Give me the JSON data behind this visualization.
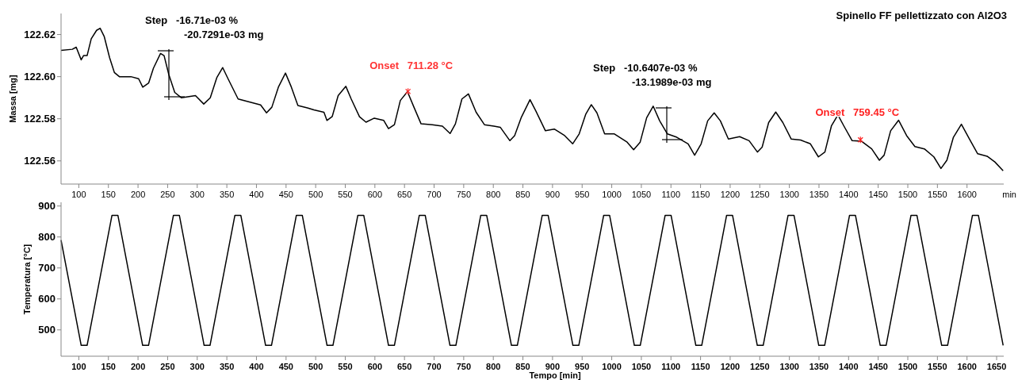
{
  "chart_data": [
    {
      "type": "line",
      "title": "Spinello FF pellettizzato con Al2O3",
      "ylabel": "Massa [mg]",
      "xlabel": "min",
      "xlim": [
        70,
        1662
      ],
      "ylim": [
        122.549,
        122.63
      ],
      "xticks": [
        100,
        150,
        200,
        250,
        300,
        350,
        400,
        450,
        500,
        550,
        600,
        650,
        700,
        750,
        800,
        850,
        900,
        950,
        1000,
        1050,
        1100,
        1150,
        1200,
        1250,
        1300,
        1350,
        1400,
        1450,
        1500,
        1550,
        1600
      ],
      "yticks": [
        122.56,
        122.58,
        {
          "value": 122.6,
          "label": "122.60"
        },
        122.62
      ],
      "annotations": [
        "Step   -16.71e-03 %",
        "-20.7291e-03 mg",
        {
          "text": "Onset   711.28 °C",
          "x": 656,
          "y": 122.593
        },
        "Step   -10.6407e-03 %",
        "-13.1989e-03 mg",
        {
          "text": "Onset   759.45 °C",
          "x": 1420,
          "y": 122.57
        }
      ],
      "series": [
        {
          "color": "#000000",
          "x": [
            70,
            89,
            95.6,
            104,
            108,
            114,
            121,
            130,
            136,
            143,
            152,
            160,
            168.5,
            188,
            201,
            208,
            218,
            226,
            238,
            244,
            252,
            262,
            273,
            297,
            311,
            322,
            333,
            343,
            352,
            369,
            388,
            407,
            417,
            426,
            437,
            449,
            459,
            470,
            486,
            497,
            514,
            519,
            528,
            538,
            551,
            560,
            574,
            585,
            599,
            615,
            623,
            633,
            643,
            655,
            666,
            678,
            697,
            714,
            727,
            736,
            747,
            758,
            771,
            785,
            801,
            812,
            828,
            836,
            847,
            862,
            872,
            888,
            903,
            920.5,
            934,
            945,
            956,
            965.5,
            975,
            988,
            1004.5,
            1026,
            1037,
            1048,
            1059,
            1070,
            1081,
            1094,
            1110,
            1129,
            1140,
            1151,
            1162,
            1173,
            1183.5,
            1197,
            1216,
            1232,
            1246,
            1254,
            1265,
            1277,
            1289,
            1303,
            1319,
            1335.5,
            1349,
            1360,
            1371,
            1382,
            1392,
            1406,
            1422,
            1439,
            1452,
            1460,
            1471,
            1484.5,
            1498,
            1512,
            1528,
            1544,
            1556,
            1566,
            1577,
            1590.5,
            1604,
            1618,
            1634,
            1647,
            1661
          ],
          "values": [
            122.6125,
            122.613,
            122.614,
            122.608,
            122.61,
            122.61,
            122.618,
            122.622,
            122.623,
            122.619,
            122.609,
            122.602,
            122.6,
            122.6,
            122.599,
            122.595,
            122.597,
            122.604,
            122.611,
            122.61,
            122.601,
            122.5925,
            122.59,
            122.591,
            122.587,
            122.59,
            122.5995,
            122.6043,
            122.599,
            122.5894,
            122.588,
            122.5866,
            122.5828,
            122.5855,
            122.595,
            122.6017,
            122.595,
            122.5863,
            122.5852,
            122.5842,
            122.5831,
            122.5792,
            122.5811,
            122.591,
            122.5954,
            122.5894,
            122.581,
            122.5784,
            122.5803,
            122.5792,
            122.5753,
            122.5772,
            122.5887,
            122.5929,
            122.5855,
            122.5776,
            122.5772,
            122.5765,
            122.573,
            122.5776,
            122.5894,
            122.5918,
            122.5831,
            122.5772,
            122.5765,
            122.5759,
            122.5696,
            122.572,
            122.5805,
            122.5891,
            122.5836,
            122.5743,
            122.5751,
            122.572,
            122.5681,
            122.5728,
            122.5821,
            122.5867,
            122.5828,
            122.5728,
            122.5728,
            122.5689,
            122.5653,
            122.5689,
            122.5805,
            122.586,
            122.579,
            122.5728,
            122.5712,
            122.5681,
            122.5627,
            122.5681,
            122.579,
            122.5828,
            122.579,
            122.5704,
            122.5715,
            122.5696,
            122.5642,
            122.5665,
            122.5782,
            122.5832,
            122.5782,
            122.5704,
            122.5699,
            122.5681,
            122.5619,
            122.5642,
            122.5766,
            122.5818,
            122.5766,
            122.5696,
            122.5693,
            122.5657,
            122.5603,
            122.5627,
            122.5743,
            122.5793,
            122.572,
            122.5668,
            122.5657,
            122.5619,
            122.5564,
            122.5603,
            122.5712,
            122.5774,
            122.5704,
            122.5634,
            122.5622,
            122.5595,
            122.5553
          ]
        }
      ]
    },
    {
      "type": "line",
      "ylabel": "Temperatura [°C]",
      "xlabel": "Tempo [min]",
      "xlim": [
        70,
        1662
      ],
      "ylim": [
        415,
        912
      ],
      "xticks": [
        100,
        150,
        200,
        250,
        300,
        350,
        400,
        450,
        500,
        550,
        600,
        650,
        700,
        750,
        800,
        850,
        900,
        950,
        1000,
        1050,
        1100,
        1150,
        1200,
        1250,
        1300,
        1350,
        1400,
        1450,
        1500,
        1550,
        1600,
        1650
      ],
      "yticks": [
        500,
        600,
        700,
        800,
        900
      ],
      "series": [
        {
          "color": "#000000",
          "x": [
            70,
            104,
            114,
            156,
            166,
            207.8,
            217.8,
            259.8,
            269.8,
            311.6,
            321.6,
            363.6,
            373.6,
            415.4,
            425.4,
            467.4,
            477.4,
            519.2,
            529.2,
            571.2,
            581.2,
            623,
            633,
            675,
            685,
            726.8,
            736.8,
            778.8,
            788.8,
            830.6,
            840.6,
            882.6,
            892.6,
            934.4,
            944.4,
            986.4,
            996.4,
            1038.2,
            1048.2,
            1090.2,
            1100.2,
            1142,
            1152,
            1194,
            1204,
            1245.8,
            1255.8,
            1297.8,
            1307.8,
            1349.6,
            1359.6,
            1401.6,
            1411.6,
            1453.4,
            1463.4,
            1505.4,
            1515.4,
            1557.2,
            1567.2,
            1609.2,
            1619.2,
            1661
          ],
          "values": [
            790,
            450,
            450,
            870,
            870,
            450,
            450,
            870,
            870,
            450,
            450,
            870,
            870,
            450,
            450,
            870,
            870,
            450,
            450,
            870,
            870,
            450,
            450,
            870,
            870,
            450,
            450,
            870,
            870,
            450,
            450,
            870,
            870,
            450,
            450,
            870,
            870,
            450,
            450,
            870,
            870,
            450,
            450,
            870,
            870,
            450,
            450,
            870,
            870,
            450,
            450,
            870,
            870,
            450,
            450,
            870,
            870,
            450,
            450,
            870,
            870,
            450
          ]
        }
      ]
    }
  ]
}
